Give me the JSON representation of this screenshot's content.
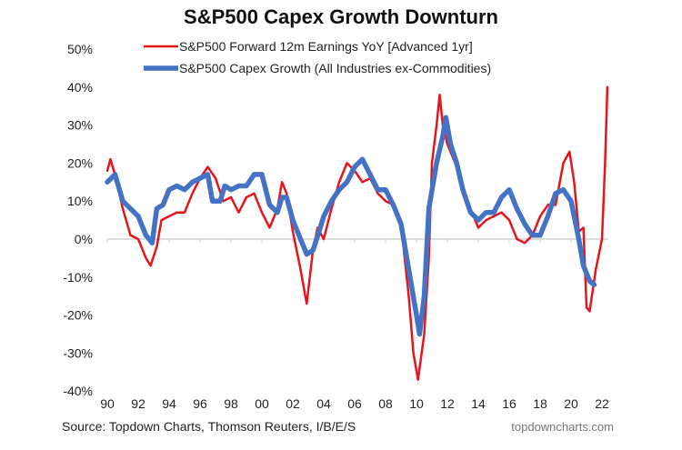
{
  "chart_data": {
    "type": "line",
    "title": "S&P500 Capex Growth Downturn",
    "xlabel": "",
    "ylabel": "",
    "xlim": [
      1990,
      2022.4
    ],
    "ylim": [
      -40,
      50
    ],
    "x_tick_labels": [
      "90",
      "92",
      "94",
      "96",
      "98",
      "00",
      "02",
      "04",
      "06",
      "08",
      "10",
      "12",
      "14",
      "16",
      "18",
      "20",
      "22"
    ],
    "y_tick_labels": [
      "50%",
      "40%",
      "30%",
      "20%",
      "10%",
      "0%",
      "-10%",
      "-20%",
      "-30%",
      "-40%"
    ],
    "grid": false,
    "legend_position": "top",
    "series": [
      {
        "name": "S&P500 Forward 12m Earnings YoY [Advanced 1yr]",
        "color": "#e8141c",
        "x": [
          1990,
          1990.2,
          1990.5,
          1991,
          1991.5,
          1992,
          1992.5,
          1992.8,
          1993.2,
          1993.5,
          1994,
          1994.5,
          1995,
          1995.5,
          1996,
          1996.5,
          1997,
          1997.5,
          1998,
          1998.5,
          1999,
          1999.5,
          2000,
          2000.5,
          2001,
          2001.3,
          2001.6,
          2002,
          2002.5,
          2002.9,
          2003.3,
          2003.6,
          2004,
          2004.5,
          2005,
          2005.5,
          2006,
          2006.5,
          2007,
          2007.5,
          2008,
          2008.5,
          2009,
          2009.5,
          2009.8,
          2010.1,
          2010.5,
          2010.8,
          2011,
          2011.3,
          2011.5,
          2011.7,
          2012,
          2012.5,
          2013,
          2013.5,
          2014,
          2014.5,
          2015,
          2015.5,
          2016,
          2016.5,
          2017,
          2017.5,
          2018,
          2018.5,
          2019,
          2019.5,
          2019.9,
          2020.2,
          2020.5,
          2020.8,
          2021,
          2021.2,
          2021.6,
          2022,
          2022.2,
          2022.35
        ],
        "values": [
          18,
          21,
          17,
          8,
          1,
          0,
          -5,
          -7,
          -2,
          5,
          6,
          7,
          7,
          12,
          16,
          19,
          16,
          10,
          11,
          7,
          11,
          12,
          7,
          3,
          8,
          15,
          12,
          2,
          -8,
          -17,
          -3,
          3,
          0,
          8,
          15,
          20,
          18,
          15,
          16,
          12,
          10,
          9,
          4,
          -15,
          -30,
          -37,
          -25,
          -5,
          20,
          30,
          38,
          30,
          25,
          20,
          14,
          8,
          3,
          5,
          6,
          7,
          5,
          0,
          -1,
          1,
          6,
          9,
          9,
          20,
          23,
          15,
          2,
          3,
          -18,
          -19,
          -8,
          0,
          20,
          40
        ]
      },
      {
        "name": "S&P500 Capex Growth (All Industries ex-Commodities)",
        "color": "#4472c4",
        "x": [
          1990,
          1990.5,
          1991,
          1991.5,
          1992,
          1992.5,
          1992.9,
          1993.2,
          1993.6,
          1994,
          1994.5,
          1995,
          1995.5,
          1996,
          1996.5,
          1996.8,
          1997.3,
          1997.6,
          1998,
          1998.5,
          1999,
          1999.5,
          2000,
          2000.5,
          2001,
          2001.3,
          2001.6,
          2002,
          2002.5,
          2002.9,
          2003.3,
          2003.7,
          2004,
          2004.5,
          2005,
          2005.5,
          2006,
          2006.5,
          2007,
          2007.5,
          2008,
          2008.5,
          2009,
          2009.5,
          2010,
          2010.2,
          2010.5,
          2010.8,
          2011.3,
          2011.7,
          2011.9,
          2012.2,
          2012.6,
          2013,
          2013.5,
          2014,
          2014.5,
          2015,
          2015.5,
          2016,
          2016.5,
          2017,
          2017.5,
          2018,
          2018.5,
          2019,
          2019.5,
          2020,
          2020.5,
          2020.8,
          2021.2,
          2021.5
        ],
        "values": [
          15,
          17,
          10,
          8,
          6,
          1,
          -1,
          8,
          9,
          13,
          14,
          13,
          15,
          16,
          17,
          10,
          10,
          14,
          13,
          14,
          14,
          17,
          17,
          9,
          7,
          11,
          11,
          5,
          0,
          -4,
          -3,
          2,
          6,
          10,
          13,
          15,
          19,
          21,
          17,
          13,
          13,
          9,
          4,
          -8,
          -20,
          -25,
          -15,
          8,
          20,
          27,
          32,
          25,
          20,
          13,
          7,
          5,
          7,
          7,
          11,
          13,
          8,
          4,
          1,
          1,
          6,
          12,
          13,
          10,
          0,
          -7,
          -11,
          -12
        ]
      }
    ],
    "source": "Source: Topdown Charts, Thomson Reuters, I/B/E/S",
    "watermark": "topdowncharts.com"
  }
}
